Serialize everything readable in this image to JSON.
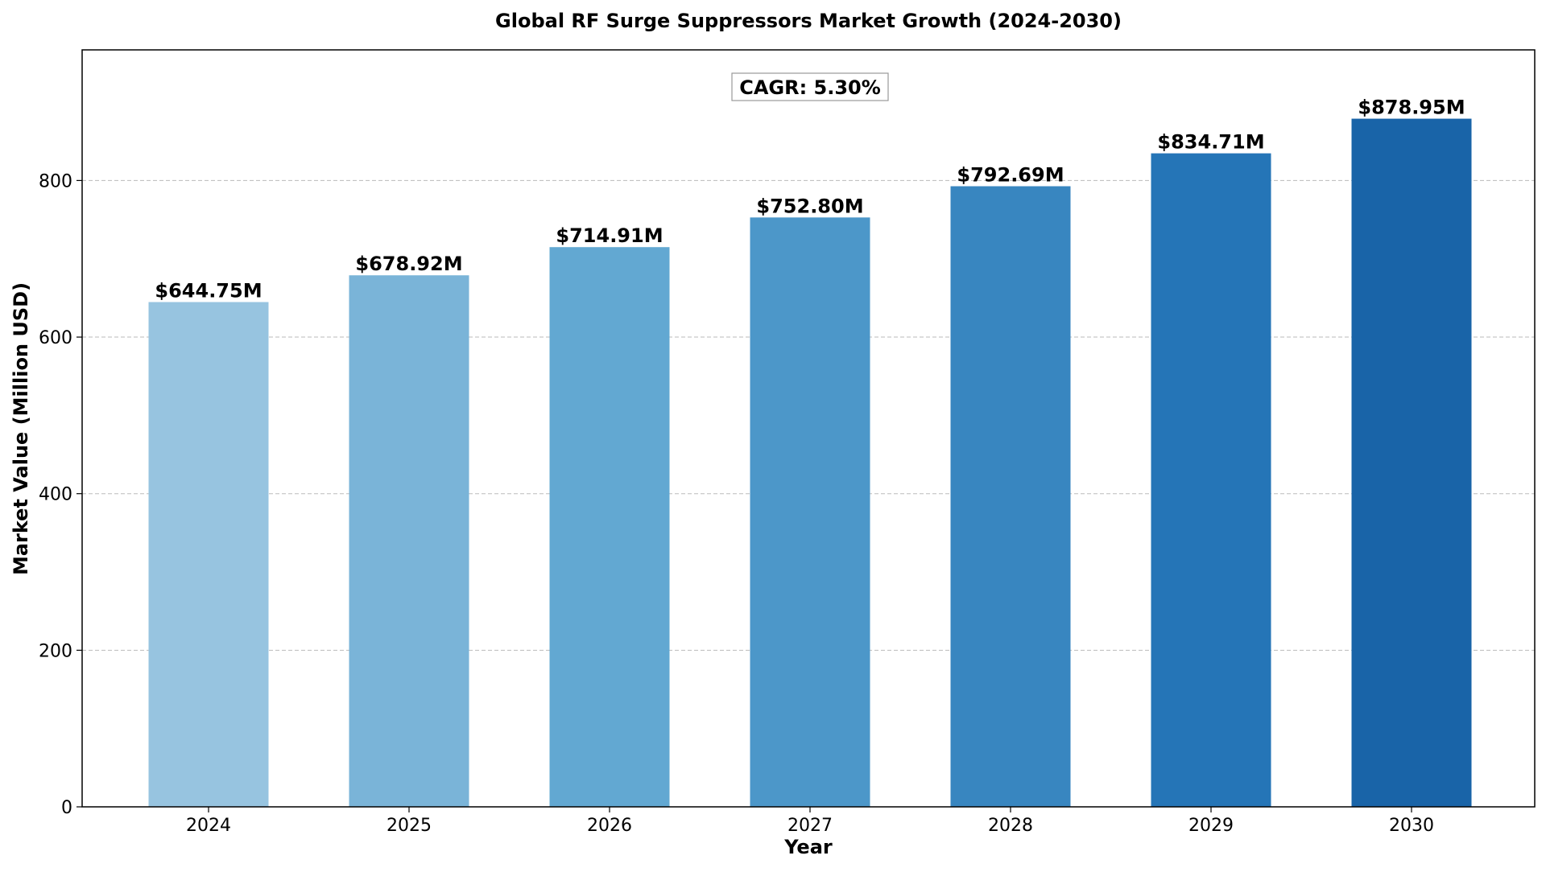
{
  "chart_data": {
    "type": "bar",
    "title": "Global RF Surge Suppressors Market Growth (2024-2030)",
    "xlabel": "Year",
    "ylabel": "Market Value (Million USD)",
    "categories": [
      "2024",
      "2025",
      "2026",
      "2027",
      "2028",
      "2029",
      "2030"
    ],
    "values": [
      644.75,
      678.92,
      714.91,
      752.8,
      792.69,
      834.71,
      878.95
    ],
    "value_labels": [
      "$644.75M",
      "$678.92M",
      "$714.91M",
      "$752.80M",
      "$792.69M",
      "$834.71M",
      "$878.95M"
    ],
    "colors": [
      "#97c4e0",
      "#7ab4d8",
      "#62a8d2",
      "#4c97c9",
      "#3886c0",
      "#2575b7",
      "#1964a8"
    ],
    "ylim": [
      0,
      966.85
    ],
    "yticks": [
      0,
      200,
      400,
      600,
      800
    ],
    "grid": true,
    "annotation": "CAGR: 5.30%"
  }
}
